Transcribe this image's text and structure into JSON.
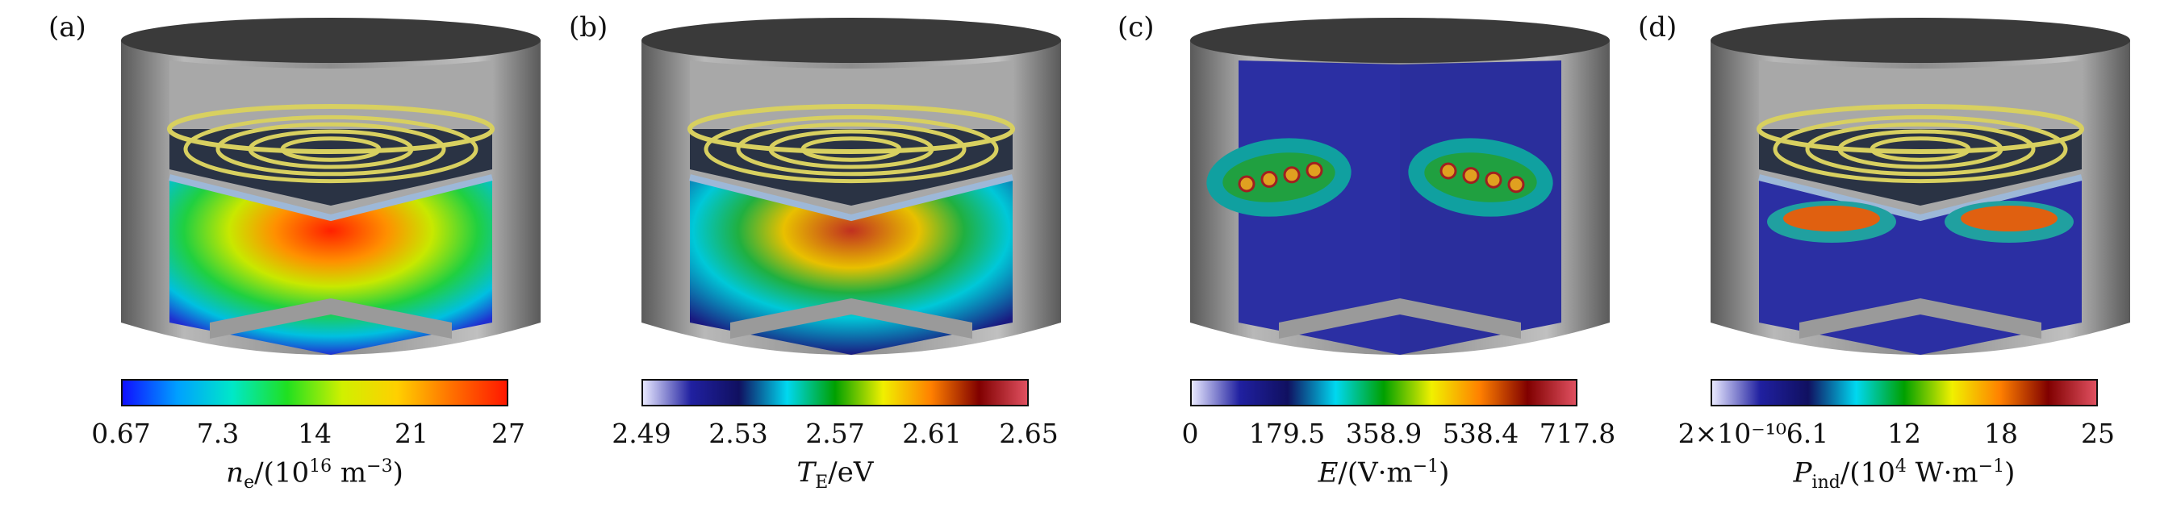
{
  "panels": [
    {
      "label": "(a)",
      "colormap": "rainbow",
      "ticks": [
        "0.67",
        "7.3",
        "14",
        "21",
        "27"
      ],
      "quantity_symbol": "n",
      "quantity_sub": "e",
      "unit_text": "/(10",
      "unit_sup": "16",
      "unit_tail": " m",
      "unit_tail_sup": "−3",
      "unit_close": ")"
    },
    {
      "label": "(b)",
      "colormap": "temperature",
      "ticks": [
        "2.49",
        "2.53",
        "2.57",
        "2.61",
        "2.65"
      ],
      "quantity_symbol": "T",
      "quantity_sub": "E",
      "unit_text": "/eV",
      "unit_sup": "",
      "unit_tail": "",
      "unit_tail_sup": "",
      "unit_close": ""
    },
    {
      "label": "(c)",
      "colormap": "temperature",
      "ticks": [
        "0",
        "179.5",
        "358.9",
        "538.4",
        "717.8"
      ],
      "quantity_symbol": "E",
      "quantity_sub": "",
      "unit_text": "/(V·m",
      "unit_sup": "−1",
      "unit_tail": "",
      "unit_tail_sup": "",
      "unit_close": ")"
    },
    {
      "label": "(d)",
      "colormap": "temperature",
      "ticks": [
        "2×10⁻¹⁰",
        "6.1",
        "12",
        "18",
        "25"
      ],
      "quantity_symbol": "P",
      "quantity_sub": "ind",
      "unit_text": "/(10",
      "unit_sup": "4",
      "unit_tail": " W·m",
      "unit_tail_sup": "−1",
      "unit_close": ")"
    }
  ],
  "colors": {
    "chamber_gray": "#8a8a8a",
    "chamber_dark": "#3a3a3a",
    "coil_yellow": "#d8d060",
    "field_blue": "#2b2fa3"
  }
}
